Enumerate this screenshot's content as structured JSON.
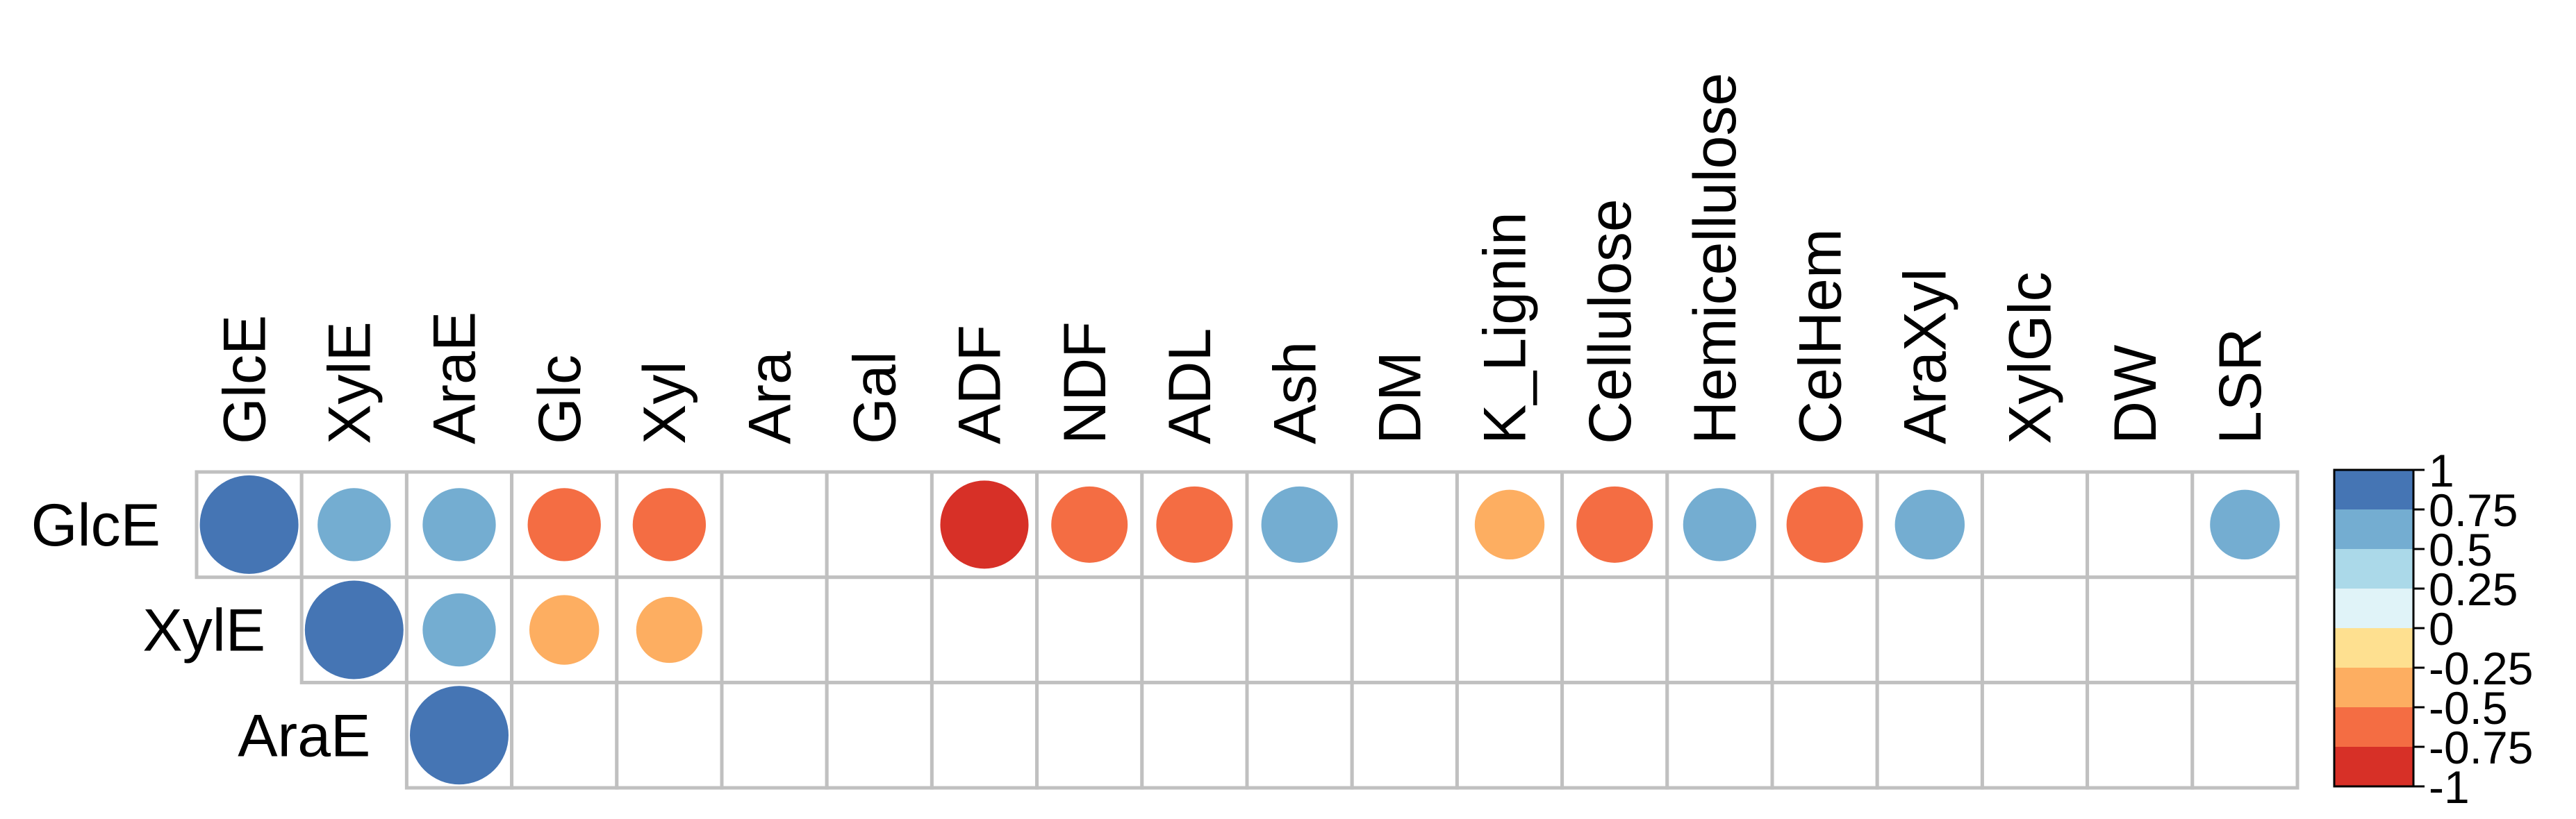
{
  "chart_data": {
    "type": "heatmap",
    "subtype": "correlation-circle-matrix",
    "title": "",
    "xlabel": "",
    "ylabel": "",
    "columns": [
      "GlcE",
      "XylE",
      "AraE",
      "Glc",
      "Xyl",
      "Ara",
      "Gal",
      "ADF",
      "NDF",
      "ADL",
      "Ash",
      "DM",
      "K_Lignin",
      "Cellulose",
      "Hemicellulose",
      "CelHem",
      "AraXyl",
      "XylGlc",
      "DW",
      "LSR"
    ],
    "rows": [
      "GlcE",
      "XylE",
      "AraE"
    ],
    "row_start_columns": [
      0,
      1,
      2
    ],
    "values": [
      [
        1.0,
        0.55,
        0.55,
        -0.55,
        -0.55,
        null,
        null,
        -0.8,
        -0.6,
        -0.6,
        0.6,
        null,
        -0.5,
        -0.6,
        0.55,
        -0.6,
        0.5,
        null,
        null,
        0.5
      ],
      [
        null,
        1.0,
        0.55,
        -0.5,
        -0.45,
        null,
        null,
        null,
        null,
        null,
        null,
        null,
        null,
        null,
        null,
        null,
        null,
        null,
        null,
        null
      ],
      [
        null,
        null,
        1.0,
        null,
        null,
        null,
        null,
        null,
        null,
        null,
        null,
        null,
        null,
        null,
        null,
        null,
        null,
        null,
        null,
        null
      ]
    ],
    "colorbar": {
      "ticks": [
        "1",
        "0.75",
        "0.5",
        "0.25",
        "0",
        "-0.25",
        "-0.5",
        "-0.75",
        "-1"
      ],
      "range": [
        -1,
        1
      ],
      "bins": [
        {
          "from": 0.75,
          "to": 1.0,
          "color": "#4575b4"
        },
        {
          "from": 0.5,
          "to": 0.75,
          "color": "#74add1"
        },
        {
          "from": 0.25,
          "to": 0.5,
          "color": "#abd9e9"
        },
        {
          "from": 0.0,
          "to": 0.25,
          "color": "#e0f3f8"
        },
        {
          "from": -0.25,
          "to": 0.0,
          "color": "#fee090"
        },
        {
          "from": -0.5,
          "to": -0.25,
          "color": "#fdae61"
        },
        {
          "from": -0.75,
          "to": -0.5,
          "color": "#f46d43"
        },
        {
          "from": -1.0,
          "to": -0.75,
          "color": "#d73027"
        }
      ]
    },
    "grid_color": "#c0c0c0",
    "legend_position": "right"
  }
}
